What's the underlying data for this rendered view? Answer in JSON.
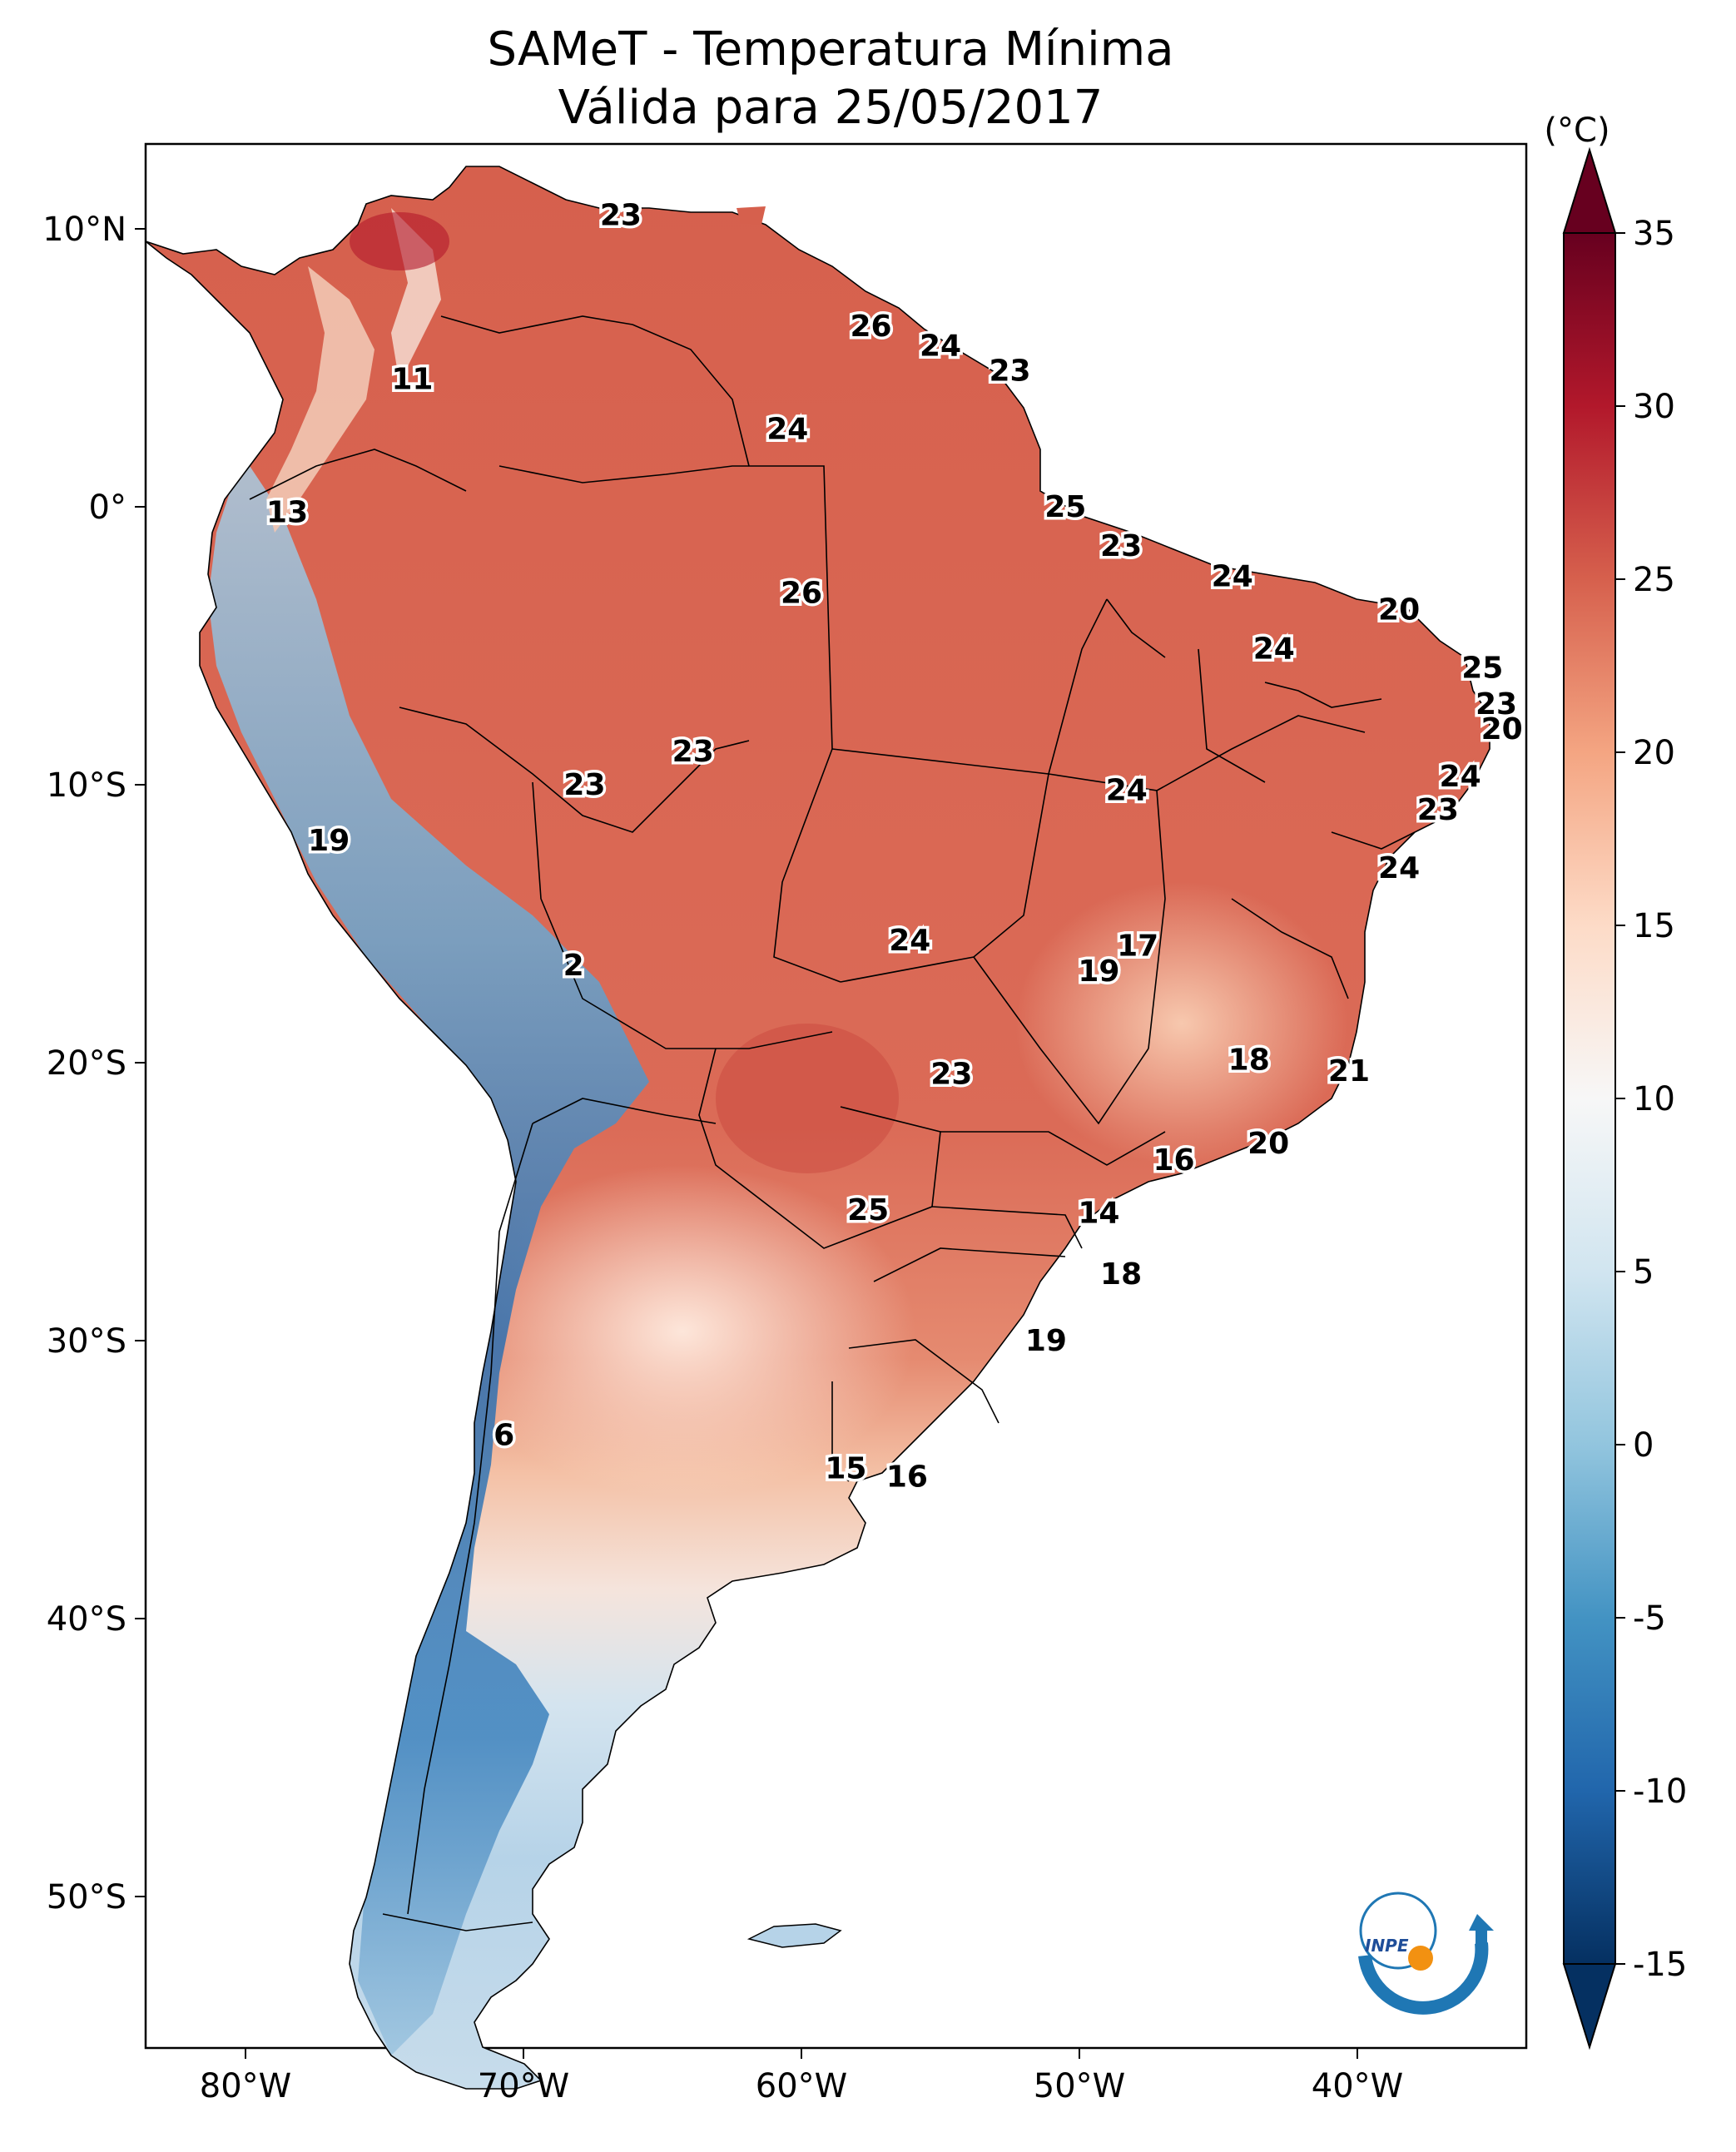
{
  "title_line1": "SAMeT - Temperatura Mínima",
  "title_line2": "Válida para 25/05/2017",
  "colorbar": {
    "unit": "(°C)",
    "ticks": [
      "35",
      "30",
      "25",
      "20",
      "15",
      "10",
      "5",
      "0",
      "-5",
      "-10",
      "-15"
    ],
    "range": [
      -15,
      35
    ],
    "colormap": "RdBu_r"
  },
  "axes": {
    "lat_ticks": [
      "10°N",
      "0°",
      "10°S",
      "20°S",
      "30°S",
      "40°S",
      "50°S"
    ],
    "lon_ticks": [
      "80°W",
      "70°W",
      "60°W",
      "50°W",
      "40°W"
    ]
  },
  "station_values": [
    {
      "value": "23",
      "lon": -66.5,
      "lat": 10.5
    },
    {
      "value": "11",
      "lon": -74.0,
      "lat": 4.6
    },
    {
      "value": "26",
      "lon": -57.5,
      "lat": 6.5
    },
    {
      "value": "24",
      "lon": -55.0,
      "lat": 5.8
    },
    {
      "value": "23",
      "lon": -52.5,
      "lat": 4.9
    },
    {
      "value": "24",
      "lon": -60.5,
      "lat": 2.8
    },
    {
      "value": "13",
      "lon": -78.5,
      "lat": -0.2
    },
    {
      "value": "25",
      "lon": -50.5,
      "lat": 0.0
    },
    {
      "value": "23",
      "lon": -48.5,
      "lat": -1.4
    },
    {
      "value": "24",
      "lon": -44.5,
      "lat": -2.5
    },
    {
      "value": "20",
      "lon": -38.5,
      "lat": -3.7
    },
    {
      "value": "26",
      "lon": -60.0,
      "lat": -3.1
    },
    {
      "value": "24",
      "lon": -43.0,
      "lat": -5.1
    },
    {
      "value": "25",
      "lon": -35.5,
      "lat": -5.8
    },
    {
      "value": "23",
      "lon": -35.0,
      "lat": -7.1
    },
    {
      "value": "20",
      "lon": -34.8,
      "lat": -8.0
    },
    {
      "value": "23",
      "lon": -63.9,
      "lat": -8.8
    },
    {
      "value": "23",
      "lon": -67.8,
      "lat": -10.0
    },
    {
      "value": "24",
      "lon": -48.3,
      "lat": -10.2
    },
    {
      "value": "24",
      "lon": -36.3,
      "lat": -9.7
    },
    {
      "value": "23",
      "lon": -37.1,
      "lat": -10.9
    },
    {
      "value": "19",
      "lon": -77.0,
      "lat": -12.0
    },
    {
      "value": "24",
      "lon": -38.5,
      "lat": -13.0
    },
    {
      "value": "17",
      "lon": -47.9,
      "lat": -15.8
    },
    {
      "value": "24",
      "lon": -56.1,
      "lat": -15.6
    },
    {
      "value": "2",
      "lon": -68.2,
      "lat": -16.5
    },
    {
      "value": "19",
      "lon": -49.3,
      "lat": -16.7
    },
    {
      "value": "18",
      "lon": -43.9,
      "lat": -19.9
    },
    {
      "value": "21",
      "lon": -40.3,
      "lat": -20.3
    },
    {
      "value": "23",
      "lon": -54.6,
      "lat": -20.4
    },
    {
      "value": "20",
      "lon": -43.2,
      "lat": -22.9
    },
    {
      "value": "16",
      "lon": -46.6,
      "lat": -23.5
    },
    {
      "value": "25",
      "lon": -57.6,
      "lat": -25.3
    },
    {
      "value": "14",
      "lon": -49.3,
      "lat": -25.4
    },
    {
      "value": "18",
      "lon": -48.5,
      "lat": -27.6
    },
    {
      "value": "19",
      "lon": -51.2,
      "lat": -30.0
    },
    {
      "value": "6",
      "lon": -70.7,
      "lat": -33.4
    },
    {
      "value": "15",
      "lon": -58.4,
      "lat": -34.6
    },
    {
      "value": "16",
      "lon": -56.2,
      "lat": -34.9
    }
  ],
  "logo": {
    "text": "INPE"
  }
}
